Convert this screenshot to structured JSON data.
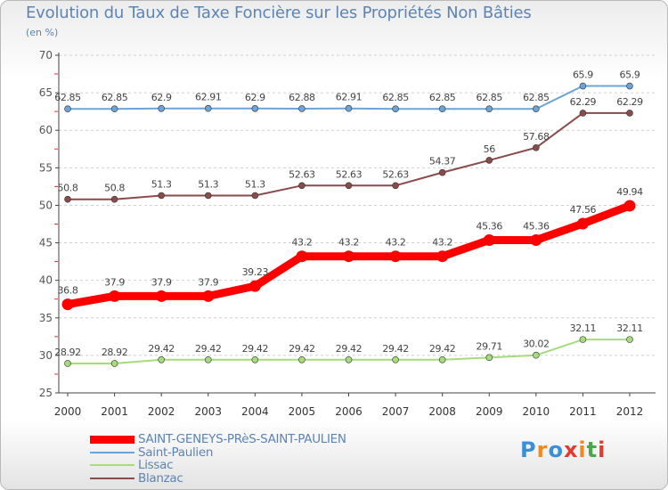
{
  "chart_data": {
    "type": "line",
    "title": "Evolution du Taux de Taxe Foncière sur les Propriétés Non Bâties",
    "subtitle": "(en %)",
    "xlabel": "",
    "ylabel": "(en %)",
    "ylim": [
      25,
      70
    ],
    "yticks": [
      25,
      30,
      35,
      40,
      45,
      50,
      55,
      60,
      65,
      70
    ],
    "categories": [
      "2000",
      "2001",
      "2002",
      "2003",
      "2004",
      "2005",
      "2006",
      "2007",
      "2008",
      "2009",
      "2010",
      "2011",
      "2012"
    ],
    "series": [
      {
        "name": "SAINT-GENEYS-PRèS-SAINT-PAULIEN",
        "color": "#ff0000",
        "values": [
          36.8,
          37.9,
          37.9,
          37.9,
          39.23,
          43.2,
          43.2,
          43.2,
          43.2,
          45.36,
          45.36,
          47.56,
          49.94
        ],
        "labels": [
          "36.8",
          "37.9",
          "37.9",
          "37.9",
          "39.23",
          "43.2",
          "43.2",
          "43.2",
          "43.2",
          "45.36",
          "45.36",
          "47.56",
          "49.94"
        ]
      },
      {
        "name": "Saint-Paulien",
        "color": "#6aa4d8",
        "values": [
          62.85,
          62.85,
          62.9,
          62.91,
          62.9,
          62.88,
          62.91,
          62.85,
          62.85,
          62.85,
          62.85,
          65.9,
          65.9
        ],
        "labels": [
          "62.85",
          "62.85",
          "62.9",
          "62.91",
          "62.9",
          "62.88",
          "62.91",
          "62.85",
          "62.85",
          "62.85",
          "62.85",
          "65.9",
          "65.9"
        ]
      },
      {
        "name": "Lissac",
        "color": "#a6dc7c",
        "values": [
          28.92,
          28.92,
          29.42,
          29.42,
          29.42,
          29.42,
          29.42,
          29.42,
          29.42,
          29.71,
          30.02,
          32.11,
          32.11
        ],
        "labels": [
          "28.92",
          "28.92",
          "29.42",
          "29.42",
          "29.42",
          "29.42",
          "29.42",
          "29.42",
          "29.42",
          "29.71",
          "30.02",
          "32.11",
          "32.11"
        ]
      },
      {
        "name": "Blanzac",
        "color": "#8a4b4b",
        "values": [
          50.8,
          50.8,
          51.3,
          51.3,
          51.3,
          52.63,
          52.63,
          52.63,
          54.37,
          56,
          57.68,
          62.29,
          62.29
        ],
        "labels": [
          "50.8",
          "50.8",
          "51.3",
          "51.3",
          "51.3",
          "52.63",
          "52.63",
          "52.63",
          "54.37",
          "56",
          "57.68",
          "62.29",
          "62.29"
        ]
      }
    ],
    "grid": true,
    "legend_position": "bottom-left"
  },
  "legend": {
    "items": [
      {
        "label": "SAINT-GENEYS-PRèS-SAINT-PAULIEN",
        "color": "#ff0000"
      },
      {
        "label": "Saint-Paulien",
        "color": "#6aa4d8"
      },
      {
        "label": "Lissac",
        "color": "#a6dc7c"
      },
      {
        "label": "Blanzac",
        "color": "#8a4b4b"
      }
    ]
  },
  "logo": {
    "text": "Proxiti"
  }
}
